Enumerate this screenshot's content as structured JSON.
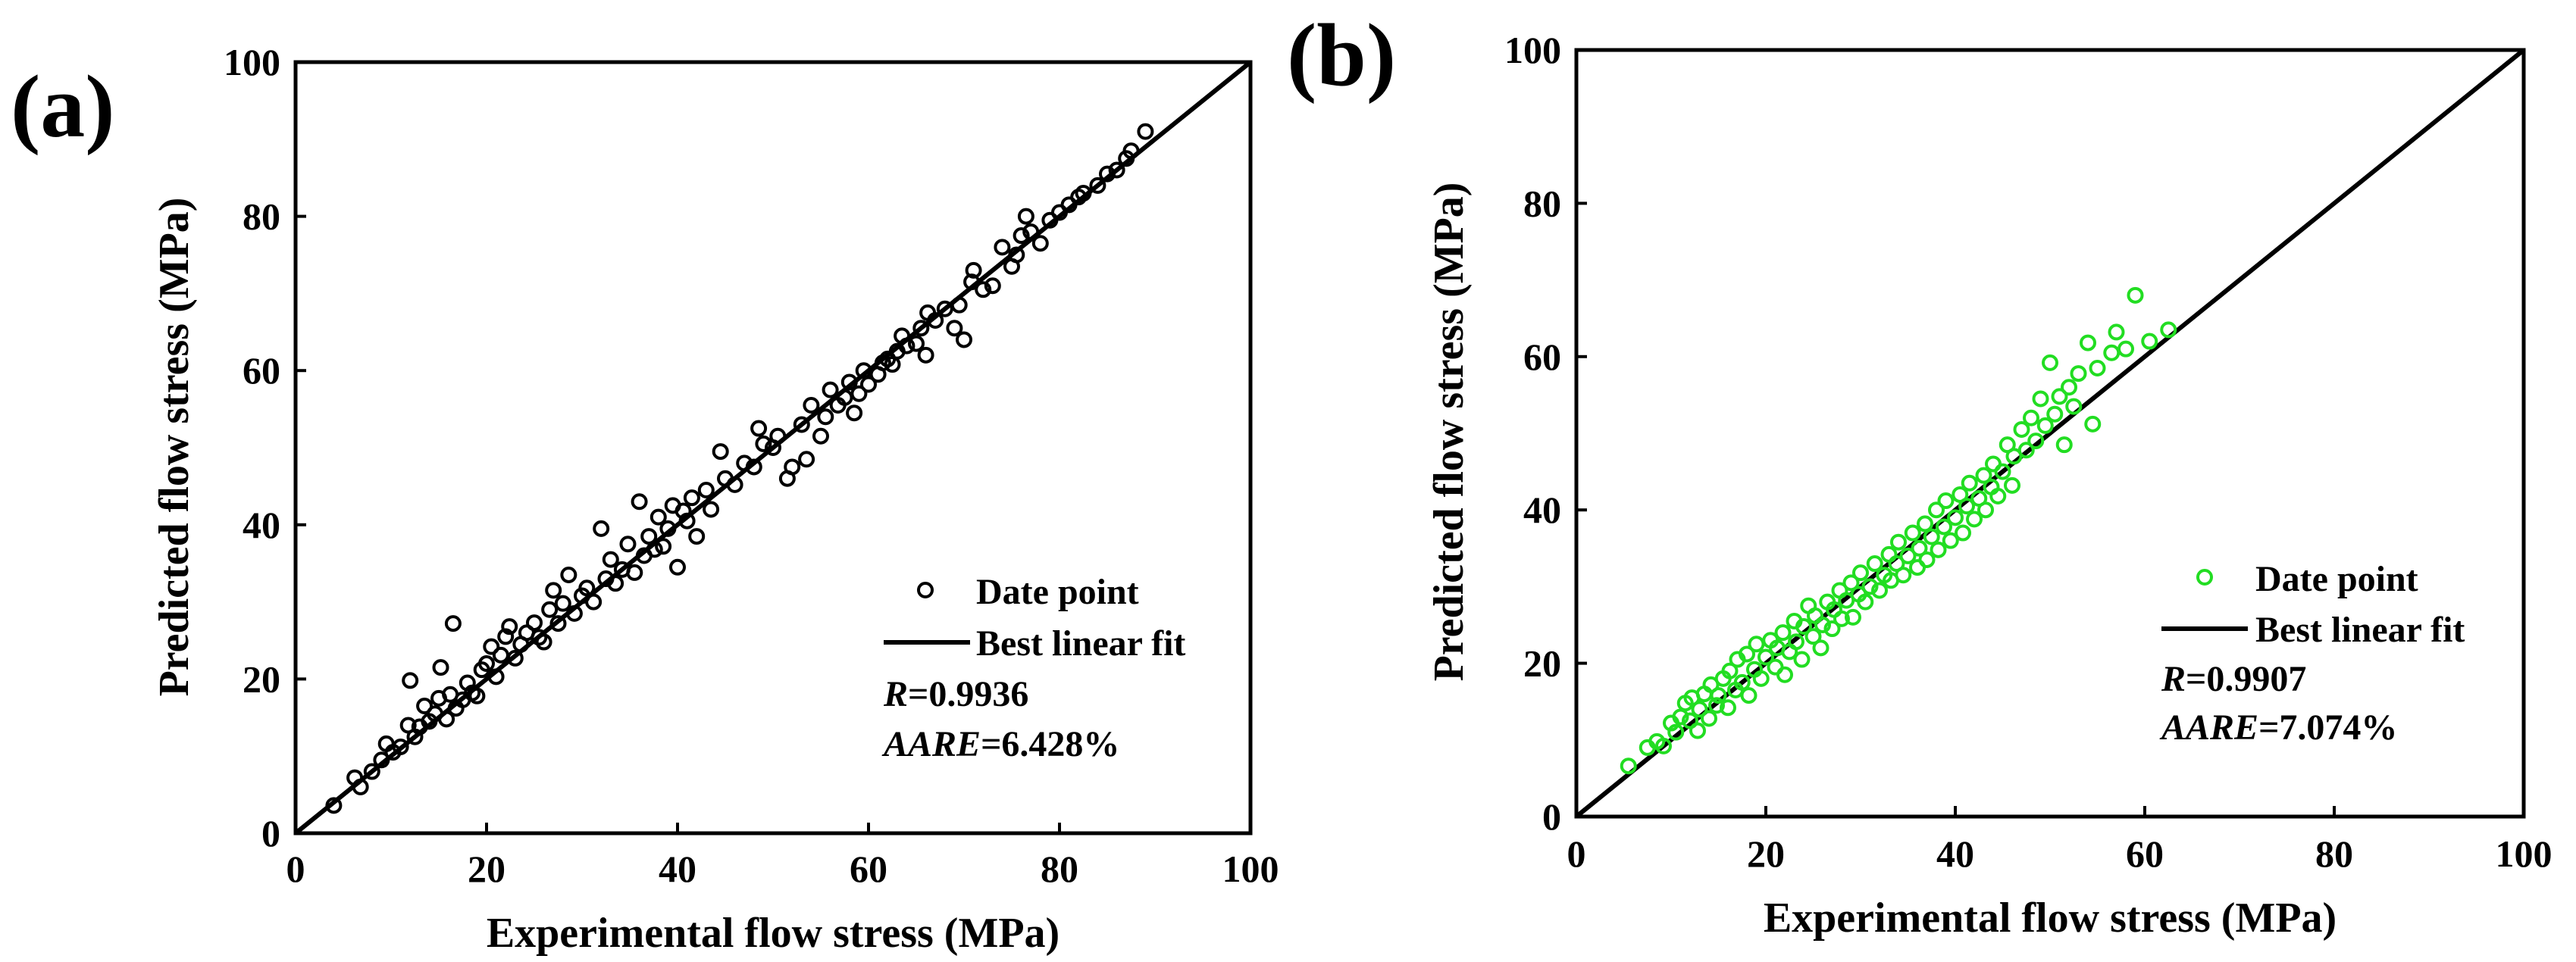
{
  "chart_data": [
    {
      "type": "scatter",
      "panel_label": "(a)",
      "xlabel": "Experimental flow stress (MPa)",
      "ylabel": "Predicted flow stress (MPa)",
      "xlim": [
        0,
        100
      ],
      "ylim": [
        0,
        100
      ],
      "xticks": [
        "0",
        "20",
        "40",
        "60",
        "80",
        "100"
      ],
      "yticks": [
        "0",
        "20",
        "40",
        "60",
        "80",
        "100"
      ],
      "marker_color": "#000000",
      "fit_line": {
        "x": [
          0,
          100
        ],
        "y": [
          0,
          100
        ]
      },
      "legend": {
        "points": "Date point",
        "line": "Best linear fit",
        "placement": "bottom-right"
      },
      "stats": {
        "r_label": "R",
        "r_value": "=0.9936",
        "aare_label": "AARE",
        "aare_value": "=6.428%"
      },
      "points": [
        [
          4.0,
          3.6
        ],
        [
          6.2,
          7.2
        ],
        [
          6.8,
          6.0
        ],
        [
          8.0,
          8.0
        ],
        [
          9.0,
          9.5
        ],
        [
          9.5,
          11.6
        ],
        [
          10.2,
          10.5
        ],
        [
          11.0,
          11.2
        ],
        [
          11.8,
          14.0
        ],
        [
          12.0,
          19.8
        ],
        [
          12.5,
          12.5
        ],
        [
          13.0,
          13.8
        ],
        [
          13.5,
          16.5
        ],
        [
          14.0,
          14.5
        ],
        [
          14.6,
          15.5
        ],
        [
          15.0,
          17.5
        ],
        [
          15.2,
          21.5
        ],
        [
          15.8,
          14.8
        ],
        [
          16.2,
          18.0
        ],
        [
          16.8,
          16.2
        ],
        [
          16.5,
          27.2
        ],
        [
          17.5,
          17.3
        ],
        [
          18.0,
          19.5
        ],
        [
          18.5,
          18.2
        ],
        [
          19.0,
          17.8
        ],
        [
          19.5,
          21.2
        ],
        [
          20.0,
          22.0
        ],
        [
          20.5,
          24.2
        ],
        [
          21.0,
          20.3
        ],
        [
          21.5,
          23.1
        ],
        [
          22.0,
          25.5
        ],
        [
          22.4,
          26.8
        ],
        [
          23.0,
          22.7
        ],
        [
          23.6,
          24.5
        ],
        [
          24.2,
          26.0
        ],
        [
          25.0,
          27.3
        ],
        [
          25.5,
          25.4
        ],
        [
          26.0,
          24.8
        ],
        [
          26.6,
          29.0
        ],
        [
          27.0,
          31.5
        ],
        [
          27.5,
          27.2
        ],
        [
          28.0,
          29.8
        ],
        [
          28.6,
          33.5
        ],
        [
          29.2,
          28.5
        ],
        [
          30.0,
          30.8
        ],
        [
          30.5,
          31.8
        ],
        [
          31.2,
          30.0
        ],
        [
          32.0,
          39.5
        ],
        [
          32.5,
          33.0
        ],
        [
          33.0,
          35.5
        ],
        [
          33.5,
          32.4
        ],
        [
          34.2,
          34.2
        ],
        [
          34.8,
          37.5
        ],
        [
          35.5,
          33.8
        ],
        [
          36.0,
          43.0
        ],
        [
          36.5,
          36.0
        ],
        [
          37.0,
          38.5
        ],
        [
          37.6,
          36.8
        ],
        [
          38.0,
          41.0
        ],
        [
          38.5,
          37.2
        ],
        [
          39.0,
          39.5
        ],
        [
          39.5,
          42.5
        ],
        [
          40.0,
          34.5
        ],
        [
          40.6,
          41.8
        ],
        [
          41.0,
          40.5
        ],
        [
          41.5,
          43.5
        ],
        [
          42.0,
          38.5
        ],
        [
          43.0,
          44.5
        ],
        [
          43.5,
          42.0
        ],
        [
          44.5,
          49.5
        ],
        [
          45.0,
          46.0
        ],
        [
          46.0,
          45.2
        ],
        [
          47.0,
          48.0
        ],
        [
          48.0,
          47.5
        ],
        [
          48.5,
          52.5
        ],
        [
          49.0,
          50.5
        ],
        [
          50.0,
          50.0
        ],
        [
          50.5,
          51.5
        ],
        [
          51.5,
          46.0
        ],
        [
          52.0,
          47.5
        ],
        [
          53.0,
          53.0
        ],
        [
          53.5,
          48.5
        ],
        [
          54.0,
          55.5
        ],
        [
          55.0,
          51.5
        ],
        [
          55.5,
          54.0
        ],
        [
          56.0,
          57.5
        ],
        [
          56.8,
          55.5
        ],
        [
          57.5,
          56.5
        ],
        [
          58.0,
          58.5
        ],
        [
          58.5,
          54.5
        ],
        [
          59.0,
          57.0
        ],
        [
          59.5,
          60.0
        ],
        [
          60.0,
          58.2
        ],
        [
          61.0,
          59.5
        ],
        [
          61.5,
          61.0
        ],
        [
          62.0,
          61.5
        ],
        [
          62.5,
          60.8
        ],
        [
          63.0,
          62.5
        ],
        [
          63.5,
          64.5
        ],
        [
          64.0,
          63.2
        ],
        [
          65.0,
          63.5
        ],
        [
          65.5,
          65.5
        ],
        [
          66.0,
          62.0
        ],
        [
          66.2,
          67.5
        ],
        [
          67.0,
          66.5
        ],
        [
          68.0,
          68.0
        ],
        [
          69.0,
          65.5
        ],
        [
          69.5,
          68.5
        ],
        [
          70.0,
          64.0
        ],
        [
          70.8,
          71.5
        ],
        [
          71.0,
          73.0
        ],
        [
          72.0,
          70.5
        ],
        [
          73.0,
          71.0
        ],
        [
          74.0,
          76.0
        ],
        [
          75.0,
          73.5
        ],
        [
          75.5,
          75.0
        ],
        [
          76.0,
          77.5
        ],
        [
          76.5,
          80.0
        ],
        [
          77.0,
          78.0
        ],
        [
          78.0,
          76.5
        ],
        [
          79.0,
          79.5
        ],
        [
          80.0,
          80.5
        ],
        [
          81.0,
          81.5
        ],
        [
          82.0,
          82.5
        ],
        [
          82.5,
          83.0
        ],
        [
          84.0,
          84.0
        ],
        [
          85.0,
          85.5
        ],
        [
          86.0,
          86.0
        ],
        [
          87.0,
          87.5
        ],
        [
          87.5,
          88.5
        ],
        [
          89.0,
          91.0
        ]
      ]
    },
    {
      "type": "scatter",
      "panel_label": "(b)",
      "xlabel": "Experimental flow stress (MPa)",
      "ylabel": "Predicted flow stress (MPa)",
      "xlim": [
        0,
        100
      ],
      "ylim": [
        0,
        100
      ],
      "xticks": [
        "0",
        "20",
        "40",
        "60",
        "80",
        "100"
      ],
      "yticks": [
        "0",
        "20",
        "40",
        "60",
        "80",
        "100"
      ],
      "marker_color": "#22dd22",
      "fit_line": {
        "x": [
          0,
          100
        ],
        "y": [
          0,
          100
        ]
      },
      "legend": {
        "points": "Date point",
        "line": "Best linear fit",
        "placement": "bottom-right"
      },
      "stats": {
        "r_label": "R",
        "r_value": "=0.9907",
        "aare_label": "AARE",
        "aare_value": "=7.074%"
      },
      "points": [
        [
          5.5,
          6.6
        ],
        [
          7.5,
          9.0
        ],
        [
          8.5,
          9.8
        ],
        [
          9.2,
          9.2
        ],
        [
          10.0,
          12.2
        ],
        [
          10.5,
          11.0
        ],
        [
          11.0,
          13.0
        ],
        [
          11.5,
          14.8
        ],
        [
          12.0,
          12.5
        ],
        [
          12.2,
          15.5
        ],
        [
          12.8,
          11.2
        ],
        [
          13.0,
          14.0
        ],
        [
          13.5,
          16.0
        ],
        [
          14.0,
          12.8
        ],
        [
          14.2,
          17.2
        ],
        [
          14.8,
          14.5
        ],
        [
          15.0,
          15.8
        ],
        [
          15.5,
          18.0
        ],
        [
          16.0,
          14.2
        ],
        [
          16.2,
          19.0
        ],
        [
          16.8,
          16.5
        ],
        [
          17.0,
          20.5
        ],
        [
          17.5,
          17.5
        ],
        [
          18.0,
          21.2
        ],
        [
          18.2,
          15.8
        ],
        [
          18.8,
          19.2
        ],
        [
          19.0,
          22.5
        ],
        [
          19.5,
          18.0
        ],
        [
          20.0,
          20.8
        ],
        [
          20.5,
          23.0
        ],
        [
          21.0,
          19.5
        ],
        [
          21.2,
          22.0
        ],
        [
          21.8,
          24.0
        ],
        [
          22.0,
          18.5
        ],
        [
          22.5,
          21.5
        ],
        [
          23.0,
          25.5
        ],
        [
          23.2,
          22.8
        ],
        [
          23.8,
          20.5
        ],
        [
          24.0,
          24.8
        ],
        [
          24.5,
          27.5
        ],
        [
          25.0,
          23.5
        ],
        [
          25.2,
          26.2
        ],
        [
          25.8,
          22.0
        ],
        [
          26.0,
          25.0
        ],
        [
          26.5,
          28.0
        ],
        [
          27.0,
          24.5
        ],
        [
          27.2,
          27.0
        ],
        [
          27.8,
          29.5
        ],
        [
          28.0,
          25.8
        ],
        [
          28.5,
          28.2
        ],
        [
          29.0,
          30.5
        ],
        [
          29.2,
          26.0
        ],
        [
          29.8,
          29.0
        ],
        [
          30.0,
          31.8
        ],
        [
          30.5,
          28.0
        ],
        [
          31.0,
          30.0
        ],
        [
          31.5,
          33.0
        ],
        [
          32.0,
          29.5
        ],
        [
          32.5,
          31.5
        ],
        [
          33.0,
          34.2
        ],
        [
          33.2,
          30.8
        ],
        [
          33.8,
          33.0
        ],
        [
          34.0,
          35.8
        ],
        [
          34.5,
          31.5
        ],
        [
          35.0,
          34.0
        ],
        [
          35.5,
          37.0
        ],
        [
          36.0,
          32.5
        ],
        [
          36.2,
          35.0
        ],
        [
          36.8,
          38.2
        ],
        [
          37.0,
          33.5
        ],
        [
          37.5,
          36.5
        ],
        [
          38.0,
          40.0
        ],
        [
          38.2,
          34.8
        ],
        [
          38.8,
          37.8
        ],
        [
          39.0,
          41.2
        ],
        [
          39.5,
          36.0
        ],
        [
          40.0,
          39.0
        ],
        [
          40.5,
          42.0
        ],
        [
          40.8,
          37.0
        ],
        [
          41.2,
          40.5
        ],
        [
          41.5,
          43.5
        ],
        [
          42.0,
          38.8
        ],
        [
          42.5,
          41.5
        ],
        [
          43.0,
          44.5
        ],
        [
          43.2,
          40.0
        ],
        [
          43.8,
          43.0
        ],
        [
          44.0,
          46.0
        ],
        [
          44.5,
          41.8
        ],
        [
          45.0,
          45.0
        ],
        [
          45.5,
          48.5
        ],
        [
          46.0,
          43.2
        ],
        [
          46.2,
          47.0
        ],
        [
          47.0,
          50.5
        ],
        [
          47.5,
          47.8
        ],
        [
          48.0,
          52.0
        ],
        [
          48.5,
          49.0
        ],
        [
          49.0,
          54.5
        ],
        [
          49.5,
          51.0
        ],
        [
          50.0,
          59.2
        ],
        [
          50.5,
          52.5
        ],
        [
          51.0,
          54.8
        ],
        [
          51.5,
          48.5
        ],
        [
          52.0,
          56.0
        ],
        [
          52.5,
          53.5
        ],
        [
          53.0,
          57.8
        ],
        [
          54.0,
          61.8
        ],
        [
          54.5,
          51.2
        ],
        [
          55.0,
          58.5
        ],
        [
          56.5,
          60.5
        ],
        [
          57.0,
          63.2
        ],
        [
          58.0,
          61.0
        ],
        [
          59.0,
          68.0
        ],
        [
          60.5,
          62.0
        ],
        [
          62.5,
          63.5
        ]
      ]
    }
  ]
}
